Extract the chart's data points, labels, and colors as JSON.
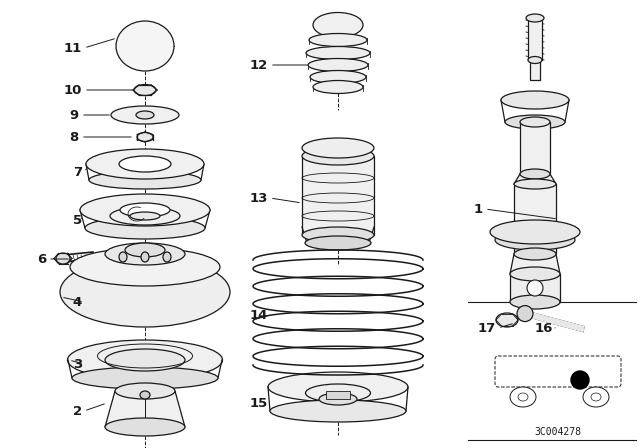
{
  "background_color": "#ffffff",
  "line_color": "#1a1a1a",
  "fc": "#f0f0f0",
  "fc2": "#e8e8e8",
  "diagram_code_text": "3C004278"
}
